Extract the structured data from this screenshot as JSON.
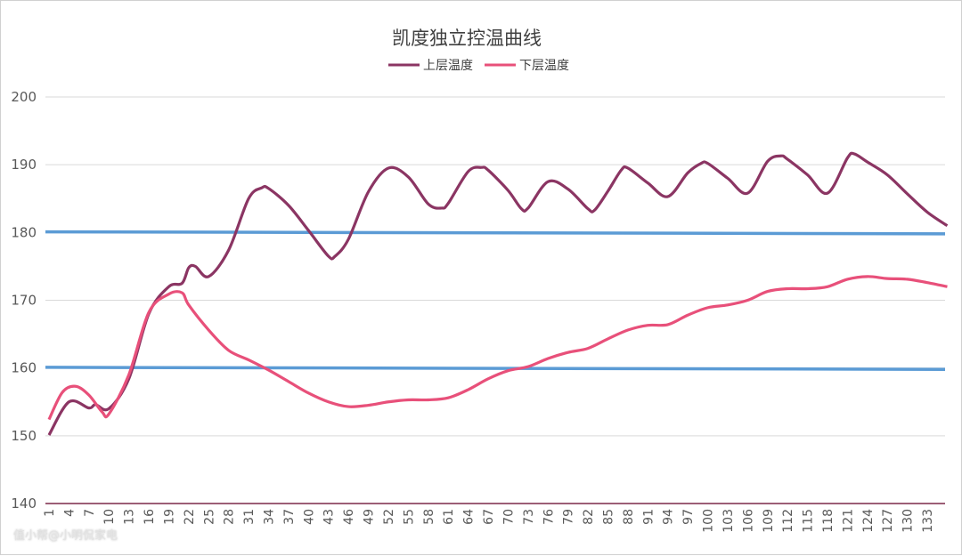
{
  "chart_data": {
    "type": "line",
    "title": "凯度独立控温曲线",
    "xlabel": "",
    "ylabel": "",
    "ylim": [
      140,
      200
    ],
    "yticks": [
      140,
      150,
      160,
      170,
      180,
      190,
      200
    ],
    "x_range": [
      1,
      136
    ],
    "xtick_start": 1,
    "xtick_step": 3,
    "xtick_end": 133,
    "grid": "horizontal",
    "legend_placement": "top-center",
    "series": [
      {
        "name": "上层温度",
        "color": "#8b3563",
        "points": [
          [
            1,
            150.1
          ],
          [
            4,
            155
          ],
          [
            7,
            154.1
          ],
          [
            8,
            154.6
          ],
          [
            10,
            154
          ],
          [
            13,
            158.4
          ],
          [
            16,
            168
          ],
          [
            19,
            172
          ],
          [
            21,
            172.5
          ],
          [
            22,
            174.8
          ],
          [
            23,
            175
          ],
          [
            25,
            173.5
          ],
          [
            28,
            177.4
          ],
          [
            31,
            185
          ],
          [
            33,
            186.6
          ],
          [
            34,
            186.5
          ],
          [
            37,
            184
          ],
          [
            40,
            180.3
          ],
          [
            43,
            176.5
          ],
          [
            44,
            176.5
          ],
          [
            46,
            179
          ],
          [
            49,
            186
          ],
          [
            52,
            189.5
          ],
          [
            55,
            188.2
          ],
          [
            58,
            184.2
          ],
          [
            60,
            183.6
          ],
          [
            61,
            184.3
          ],
          [
            64,
            189
          ],
          [
            66,
            189.6
          ],
          [
            67,
            189.2
          ],
          [
            70,
            186.2
          ],
          [
            72,
            183.5
          ],
          [
            73,
            183.6
          ],
          [
            76,
            187.5
          ],
          [
            79,
            186.4
          ],
          [
            82,
            183.5
          ],
          [
            83,
            183.3
          ],
          [
            85,
            186.1
          ],
          [
            87,
            189.2
          ],
          [
            88,
            189.5
          ],
          [
            91,
            187.3
          ],
          [
            94,
            185.3
          ],
          [
            97,
            188.8
          ],
          [
            99,
            190.2
          ],
          [
            100,
            190.2
          ],
          [
            103,
            188
          ],
          [
            106,
            185.8
          ],
          [
            109,
            190.5
          ],
          [
            111,
            191.3
          ],
          [
            112,
            190.8
          ],
          [
            115,
            188.5
          ],
          [
            118,
            185.8
          ],
          [
            121,
            191
          ],
          [
            122,
            191.6
          ],
          [
            124,
            190.4
          ],
          [
            127,
            188.5
          ],
          [
            130,
            185.7
          ],
          [
            133,
            183
          ],
          [
            136,
            181
          ]
        ]
      },
      {
        "name": "下层温度",
        "color": "#e8507a",
        "points": [
          [
            1,
            152.4
          ],
          [
            3,
            156.4
          ],
          [
            5,
            157.3
          ],
          [
            7,
            156
          ],
          [
            9,
            153.5
          ],
          [
            10,
            153.2
          ],
          [
            13,
            159
          ],
          [
            16,
            168.2
          ],
          [
            19,
            170.9
          ],
          [
            21,
            171.1
          ],
          [
            22,
            169.3
          ],
          [
            25,
            165.6
          ],
          [
            28,
            162.6
          ],
          [
            31,
            161.2
          ],
          [
            34,
            159.7
          ],
          [
            37,
            158
          ],
          [
            40,
            156.3
          ],
          [
            43,
            155
          ],
          [
            46,
            154.3
          ],
          [
            49,
            154.5
          ],
          [
            52,
            155
          ],
          [
            55,
            155.3
          ],
          [
            58,
            155.3
          ],
          [
            61,
            155.6
          ],
          [
            64,
            156.8
          ],
          [
            67,
            158.4
          ],
          [
            70,
            159.6
          ],
          [
            73,
            160.2
          ],
          [
            76,
            161.4
          ],
          [
            79,
            162.3
          ],
          [
            82,
            162.9
          ],
          [
            85,
            164.3
          ],
          [
            88,
            165.6
          ],
          [
            91,
            166.3
          ],
          [
            94,
            166.4
          ],
          [
            97,
            167.8
          ],
          [
            100,
            168.9
          ],
          [
            103,
            169.3
          ],
          [
            106,
            170
          ],
          [
            109,
            171.3
          ],
          [
            112,
            171.7
          ],
          [
            115,
            171.7
          ],
          [
            118,
            172
          ],
          [
            121,
            173.1
          ],
          [
            124,
            173.5
          ],
          [
            127,
            173.2
          ],
          [
            130,
            173.1
          ],
          [
            133,
            172.6
          ],
          [
            136,
            172
          ]
        ]
      }
    ],
    "reference_lines": [
      {
        "color": "#5b9bd5",
        "start": 180.1,
        "end": 179.8
      },
      {
        "color": "#5b9bd5",
        "start": 160.1,
        "end": 159.8
      }
    ]
  },
  "watermark": "值小帮@小明侃家电"
}
